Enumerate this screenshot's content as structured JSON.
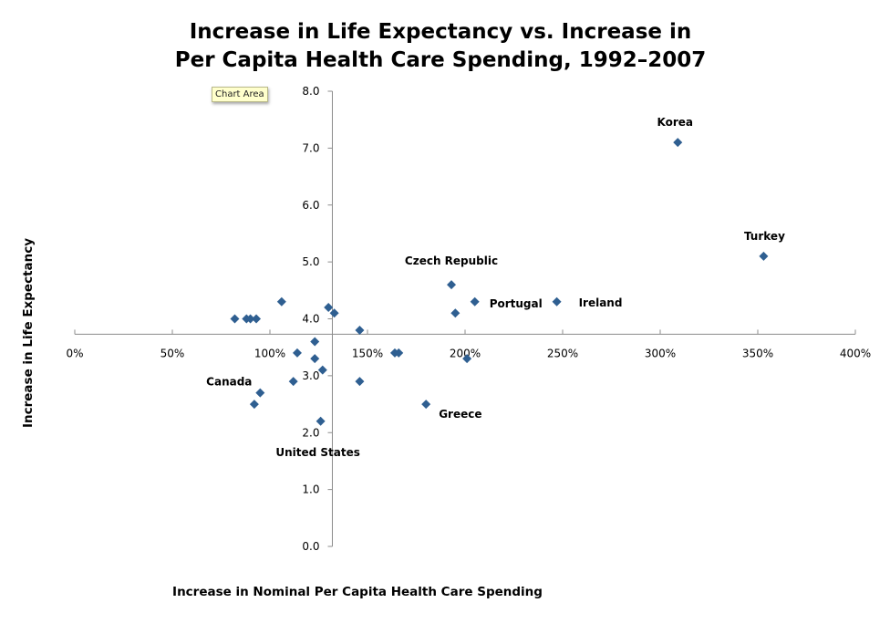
{
  "tooltip": {
    "text": "Chart Area"
  },
  "chart_data": {
    "type": "scatter",
    "title_lines": [
      "Increase in Life Expectancy vs. Increase in",
      "Per Capita Health Care Spending, 1992–2007"
    ],
    "xlabel": "Increase in Nominal Per Capita Health Care Spending",
    "ylabel": "Increase in Life Expectancy",
    "xlim": [
      0,
      400
    ],
    "ylim": [
      0,
      8
    ],
    "x_unit": "%",
    "x_ticks": [
      0,
      50,
      100,
      150,
      200,
      250,
      300,
      350,
      400
    ],
    "x_tick_labels": [
      "0%",
      "50%",
      "100%",
      "150%",
      "200%",
      "250%",
      "300%",
      "350%",
      "400%"
    ],
    "y_ticks": [
      0,
      1,
      2,
      3,
      4,
      5,
      6,
      7,
      8
    ],
    "y_tick_labels": [
      "0.0",
      "1.0",
      "2.0",
      "3.0",
      "4.0",
      "5.0",
      "6.0",
      "7.0",
      "8.0"
    ],
    "x_axis_crosses_y_at": 3.73,
    "y_axis_crosses_x_at": 132,
    "grid": false,
    "legend": "none",
    "marker_color": "#2f5f91",
    "points": [
      {
        "x": 82,
        "y": 4.0,
        "label": ""
      },
      {
        "x": 88,
        "y": 4.0,
        "label": ""
      },
      {
        "x": 90,
        "y": 4.0,
        "label": ""
      },
      {
        "x": 93,
        "y": 4.0,
        "label": ""
      },
      {
        "x": 106,
        "y": 4.3,
        "label": ""
      },
      {
        "x": 130,
        "y": 4.2,
        "label": ""
      },
      {
        "x": 133,
        "y": 4.1,
        "label": ""
      },
      {
        "x": 146,
        "y": 3.8,
        "label": ""
      },
      {
        "x": 123,
        "y": 3.6,
        "label": ""
      },
      {
        "x": 114,
        "y": 3.4,
        "label": ""
      },
      {
        "x": 123,
        "y": 3.3,
        "label": ""
      },
      {
        "x": 127,
        "y": 3.1,
        "label": ""
      },
      {
        "x": 112,
        "y": 2.9,
        "label": ""
      },
      {
        "x": 146,
        "y": 2.9,
        "label": ""
      },
      {
        "x": 95,
        "y": 2.7,
        "label": "Canada"
      },
      {
        "x": 92,
        "y": 2.5,
        "label": ""
      },
      {
        "x": 126,
        "y": 2.2,
        "label": "United States"
      },
      {
        "x": 164,
        "y": 3.4,
        "label": ""
      },
      {
        "x": 166,
        "y": 3.4,
        "label": ""
      },
      {
        "x": 201,
        "y": 3.3,
        "label": ""
      },
      {
        "x": 180,
        "y": 2.5,
        "label": "Greece"
      },
      {
        "x": 193,
        "y": 4.6,
        "label": "Czech Republic"
      },
      {
        "x": 205,
        "y": 4.3,
        "label": "Portugal"
      },
      {
        "x": 195,
        "y": 4.1,
        "label": ""
      },
      {
        "x": 247,
        "y": 4.3,
        "label": "Ireland"
      },
      {
        "x": 309,
        "y": 7.1,
        "label": "Korea"
      },
      {
        "x": 353,
        "y": 5.1,
        "label": "Turkey"
      }
    ]
  }
}
